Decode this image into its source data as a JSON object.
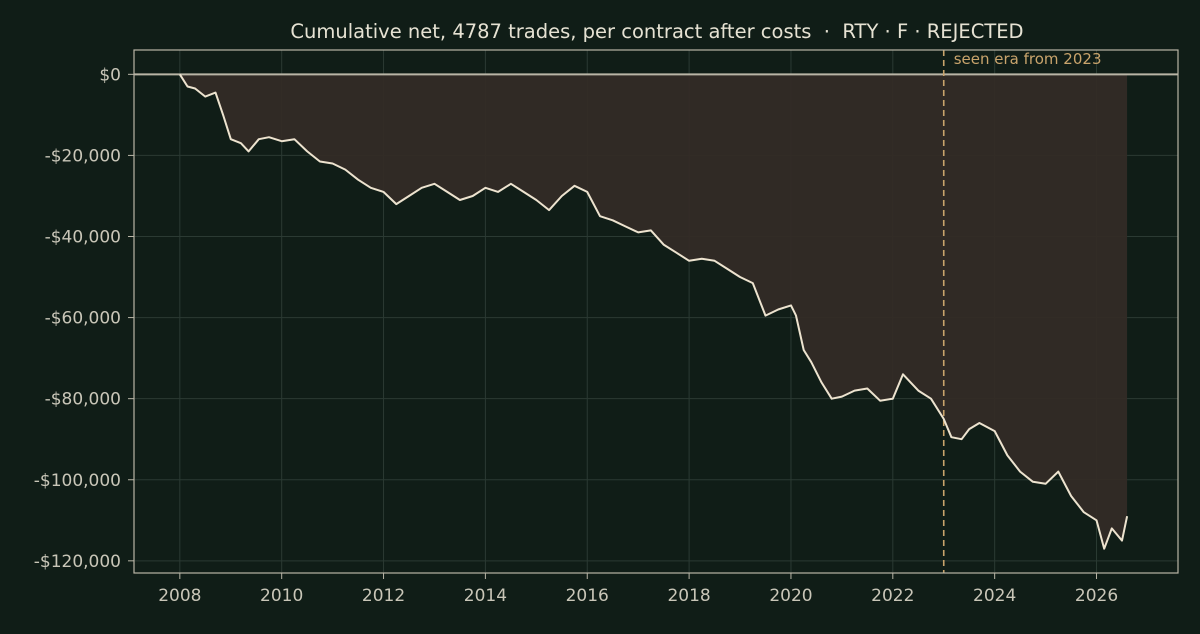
{
  "colors": {
    "background": "#101d17",
    "line": "#ede3cf",
    "fill": "#332b26",
    "grid": "#2b3a33",
    "axis": "#b9b5a6",
    "text": "#c9c6b8",
    "title": "#e6e2d3",
    "annotation": "#c9a46c"
  },
  "chart_data": {
    "type": "line",
    "title": "Cumulative net, 4787 trades, per contract after costs  ·  RTY · F · REJECTED",
    "xlabel": "",
    "ylabel": "",
    "xlim": [
      2007.1,
      2027.6
    ],
    "ylim": [
      -123000,
      6000
    ],
    "x_ticks": [
      2008,
      2010,
      2012,
      2014,
      2016,
      2018,
      2020,
      2022,
      2024,
      2026
    ],
    "x_tick_labels": [
      "2008",
      "2010",
      "2012",
      "2014",
      "2016",
      "2018",
      "2020",
      "2022",
      "2024",
      "2026"
    ],
    "y_ticks": [
      0,
      -20000,
      -40000,
      -60000,
      -80000,
      -100000,
      -120000
    ],
    "y_tick_labels": [
      "$0",
      "-$20,000",
      "-$40,000",
      "-$60,000",
      "-$80,000",
      "-$100,000",
      "-$120,000"
    ],
    "grid": true,
    "fill_between_zero": true,
    "annotation": {
      "x": 2023.0,
      "label": "seen era from 2023",
      "style": "dashed-vertical-line"
    },
    "series": [
      {
        "x": [
          2008.0,
          2008.15,
          2008.3,
          2008.5,
          2008.7,
          2008.85,
          2009.0,
          2009.2,
          2009.35,
          2009.55,
          2009.75,
          2010.0,
          2010.25,
          2010.5,
          2010.75,
          2011.0,
          2011.25,
          2011.5,
          2011.75,
          2012.0,
          2012.25,
          2012.5,
          2012.75,
          2013.0,
          2013.25,
          2013.5,
          2013.75,
          2014.0,
          2014.25,
          2014.5,
          2014.75,
          2015.0,
          2015.25,
          2015.5,
          2015.75,
          2016.0,
          2016.25,
          2016.5,
          2016.75,
          2017.0,
          2017.25,
          2017.5,
          2017.75,
          2018.0,
          2018.25,
          2018.5,
          2018.75,
          2019.0,
          2019.25,
          2019.5,
          2019.75,
          2020.0,
          2020.1,
          2020.25,
          2020.4,
          2020.6,
          2020.8,
          2021.0,
          2021.25,
          2021.5,
          2021.75,
          2022.0,
          2022.2,
          2022.35,
          2022.5,
          2022.75,
          2023.0,
          2023.15,
          2023.35,
          2023.5,
          2023.7,
          2024.0,
          2024.25,
          2024.5,
          2024.75,
          2025.0,
          2025.25,
          2025.5,
          2025.75,
          2026.0,
          2026.15,
          2026.3,
          2026.5,
          2026.6
        ],
        "y": [
          0,
          -3000,
          -3500,
          -5500,
          -4500,
          -10000,
          -16000,
          -17000,
          -19000,
          -16000,
          -15500,
          -16500,
          -16000,
          -19000,
          -21500,
          -22000,
          -23500,
          -26000,
          -28000,
          -29000,
          -32000,
          -30000,
          -28000,
          -27000,
          -29000,
          -31000,
          -30000,
          -28000,
          -29000,
          -27000,
          -29000,
          -31000,
          -33500,
          -30000,
          -27500,
          -29000,
          -35000,
          -36000,
          -37500,
          -39000,
          -38500,
          -42000,
          -44000,
          -46000,
          -45500,
          -46000,
          -48000,
          -50000,
          -51500,
          -59500,
          -58000,
          -57000,
          -59500,
          -68000,
          -71000,
          -76000,
          -80000,
          -79500,
          -78000,
          -77500,
          -80500,
          -80000,
          -74000,
          -76000,
          -78000,
          -80000,
          -85000,
          -89500,
          -90000,
          -87500,
          -86000,
          -88000,
          -94000,
          -98000,
          -100500,
          -101000,
          -98000,
          -104000,
          -108000,
          -110000,
          -117000,
          -112000,
          -115000,
          -109000
        ]
      }
    ]
  }
}
